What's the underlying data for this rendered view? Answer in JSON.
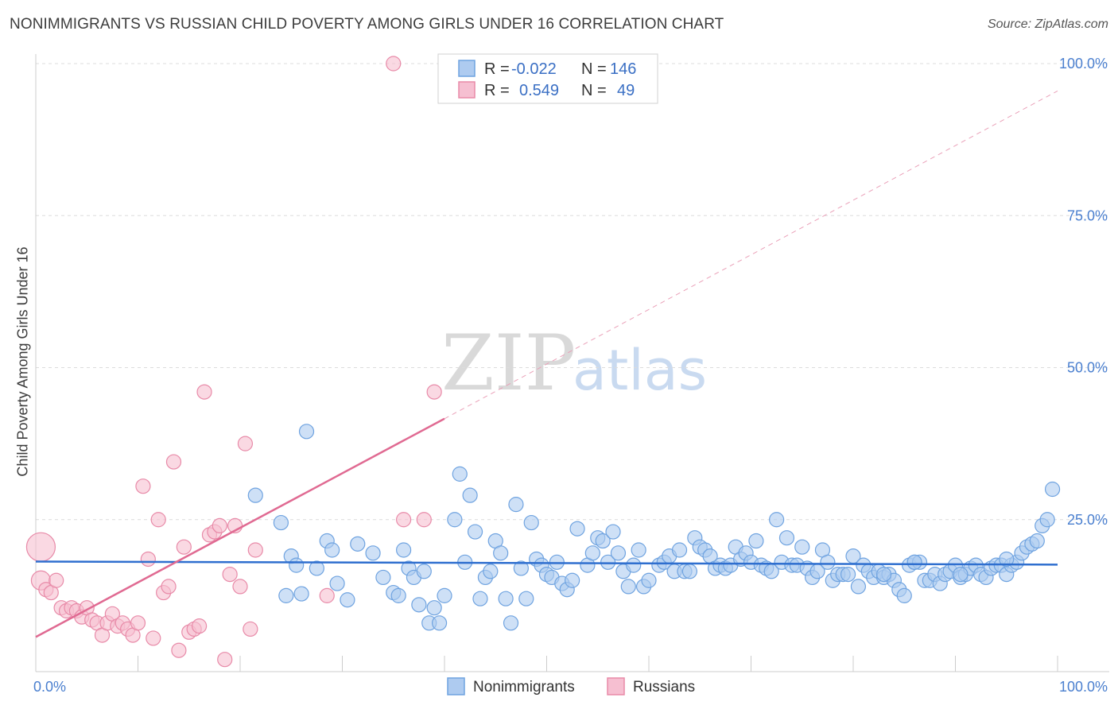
{
  "chart_data": {
    "type": "scatter",
    "title": "NONIMMIGRANTS VS RUSSIAN CHILD POVERTY AMONG GIRLS UNDER 16 CORRELATION CHART",
    "source": "Source: ZipAtlas.com",
    "xlabel": "",
    "ylabel": "Child Poverty Among Girls Under 16",
    "xlim": [
      0,
      100
    ],
    "ylim": [
      0,
      100
    ],
    "x_tick_labels": [
      "0.0%",
      "100.0%"
    ],
    "y_tick_labels": [
      "25.0%",
      "50.0%",
      "75.0%",
      "100.0%"
    ],
    "y_ticks": [
      25,
      50,
      75,
      100
    ],
    "watermark": {
      "part1": "ZIP",
      "part2": "atlas"
    },
    "legend": [
      {
        "r_label": "R =",
        "r_value": "-0.022",
        "n_label": "N =",
        "n_value": "146"
      },
      {
        "r_label": "R =",
        "r_value": "0.549",
        "n_label": "N =",
        "n_value": "49"
      }
    ],
    "series": [
      {
        "name": "Nonimmigrants",
        "color": "#6fa3e0",
        "fill": "#aecbf0",
        "trend": {
          "x": [
            0,
            100
          ],
          "y": [
            18.1,
            17.6
          ]
        },
        "points": [
          [
            21.5,
            29
          ],
          [
            26.5,
            39.5
          ],
          [
            24,
            24.5
          ],
          [
            25,
            19
          ],
          [
            25.5,
            17.5
          ],
          [
            24.5,
            12.5
          ],
          [
            26,
            12.8
          ],
          [
            27.5,
            17
          ],
          [
            28.5,
            21.5
          ],
          [
            29,
            20
          ],
          [
            29.5,
            14.5
          ],
          [
            30.5,
            11.8
          ],
          [
            31.5,
            21
          ],
          [
            33,
            19.5
          ],
          [
            34,
            15.5
          ],
          [
            35,
            13
          ],
          [
            35.5,
            12.5
          ],
          [
            36,
            20
          ],
          [
            36.5,
            17
          ],
          [
            37,
            15.5
          ],
          [
            37.5,
            11
          ],
          [
            38,
            16.5
          ],
          [
            38.5,
            8
          ],
          [
            39,
            10.5
          ],
          [
            39.5,
            8
          ],
          [
            40,
            12.5
          ],
          [
            41,
            25
          ],
          [
            41.5,
            32.5
          ],
          [
            42,
            18
          ],
          [
            42.5,
            29
          ],
          [
            43,
            23
          ],
          [
            43.5,
            12
          ],
          [
            44,
            15.5
          ],
          [
            44.5,
            16.5
          ],
          [
            45,
            21.5
          ],
          [
            45.5,
            19.5
          ],
          [
            46,
            12
          ],
          [
            46.5,
            8
          ],
          [
            47,
            27.5
          ],
          [
            47.5,
            17
          ],
          [
            48,
            12
          ],
          [
            48.5,
            24.5
          ],
          [
            49,
            18.5
          ],
          [
            49.5,
            17.5
          ],
          [
            50,
            16
          ],
          [
            50.5,
            15.5
          ],
          [
            51,
            18
          ],
          [
            51.5,
            14.5
          ],
          [
            52,
            13.5
          ],
          [
            52.5,
            15
          ],
          [
            53,
            23.5
          ],
          [
            54,
            17.5
          ],
          [
            54.5,
            19.5
          ],
          [
            55,
            22
          ],
          [
            55.5,
            21.5
          ],
          [
            56,
            18
          ],
          [
            56.5,
            23
          ],
          [
            57,
            19.5
          ],
          [
            57.5,
            16.5
          ],
          [
            58,
            14
          ],
          [
            58.5,
            17.5
          ],
          [
            59,
            20
          ],
          [
            59.5,
            14
          ],
          [
            60,
            15
          ],
          [
            61,
            17.5
          ],
          [
            61.5,
            18
          ],
          [
            62,
            19
          ],
          [
            62.5,
            16.5
          ],
          [
            63,
            20
          ],
          [
            63.5,
            16.5
          ],
          [
            64,
            16.5
          ],
          [
            64.5,
            22
          ],
          [
            65,
            20.5
          ],
          [
            65.5,
            20
          ],
          [
            66,
            19
          ],
          [
            66.5,
            17
          ],
          [
            67,
            17.5
          ],
          [
            67.5,
            17
          ],
          [
            68,
            17.5
          ],
          [
            68.5,
            20.5
          ],
          [
            69,
            18.5
          ],
          [
            69.5,
            19.5
          ],
          [
            70,
            18
          ],
          [
            70.5,
            21.5
          ],
          [
            71,
            17.5
          ],
          [
            71.5,
            17
          ],
          [
            72,
            16.5
          ],
          [
            72.5,
            25
          ],
          [
            73,
            18
          ],
          [
            73.5,
            22
          ],
          [
            74,
            17.5
          ],
          [
            74.5,
            17.5
          ],
          [
            75,
            20.5
          ],
          [
            75.5,
            17
          ],
          [
            76,
            15.5
          ],
          [
            76.5,
            16.5
          ],
          [
            77,
            20
          ],
          [
            77.5,
            18
          ],
          [
            78,
            15
          ],
          [
            78.5,
            16
          ],
          [
            79,
            16
          ],
          [
            79.5,
            16
          ],
          [
            80,
            19
          ],
          [
            80.5,
            14
          ],
          [
            81,
            17.5
          ],
          [
            81.5,
            16.5
          ],
          [
            82,
            15.5
          ],
          [
            82.5,
            16.5
          ],
          [
            83,
            15.5
          ],
          [
            83.5,
            16
          ],
          [
            84,
            15
          ],
          [
            84.5,
            13.5
          ],
          [
            85,
            12.5
          ],
          [
            85.5,
            17.5
          ],
          [
            86,
            18
          ],
          [
            86.5,
            18
          ],
          [
            87,
            15
          ],
          [
            87.5,
            15
          ],
          [
            88,
            16
          ],
          [
            88.5,
            14.5
          ],
          [
            89,
            16
          ],
          [
            89.5,
            16.5
          ],
          [
            90,
            17.5
          ],
          [
            90.5,
            15.5
          ],
          [
            91,
            16
          ],
          [
            91.5,
            17
          ],
          [
            92,
            17.5
          ],
          [
            92.5,
            16
          ],
          [
            93,
            15.5
          ],
          [
            93.5,
            17
          ],
          [
            94,
            17.5
          ],
          [
            94.5,
            17.5
          ],
          [
            95,
            16
          ],
          [
            95.5,
            17.5
          ],
          [
            96,
            18
          ],
          [
            96.5,
            19.5
          ],
          [
            97,
            20.5
          ],
          [
            97.5,
            21
          ],
          [
            98,
            21.5
          ],
          [
            98.5,
            24
          ],
          [
            99,
            25
          ],
          [
            99.5,
            30
          ],
          [
            83,
            16
          ],
          [
            86,
            18
          ],
          [
            90.5,
            16
          ],
          [
            95,
            18.5
          ]
        ]
      },
      {
        "name": "Russians",
        "color": "#e88aa8",
        "fill": "#f6bfd1",
        "trend": {
          "x": [
            0,
            40
          ],
          "y": [
            5.7,
            41.6
          ]
        },
        "trend_ext": {
          "x": [
            40,
            100
          ],
          "y": [
            41.6,
            95.5
          ]
        },
        "points": [
          [
            0.5,
            20.5
          ],
          [
            0.5,
            15
          ],
          [
            1,
            13.5
          ],
          [
            1.5,
            13
          ],
          [
            2,
            15
          ],
          [
            2.5,
            10.5
          ],
          [
            3,
            10
          ],
          [
            3.5,
            10.5
          ],
          [
            4,
            10
          ],
          [
            4.5,
            9
          ],
          [
            5,
            10.5
          ],
          [
            5.5,
            8.5
          ],
          [
            6,
            8
          ],
          [
            6.5,
            6
          ],
          [
            7,
            8
          ],
          [
            7.5,
            9.5
          ],
          [
            8,
            7.5
          ],
          [
            8.5,
            8
          ],
          [
            9,
            7
          ],
          [
            9.5,
            6
          ],
          [
            10,
            8
          ],
          [
            10.5,
            30.5
          ],
          [
            11,
            18.5
          ],
          [
            11.5,
            5.5
          ],
          [
            12,
            25
          ],
          [
            12.5,
            13
          ],
          [
            13,
            14
          ],
          [
            13.5,
            34.5
          ],
          [
            14,
            3.5
          ],
          [
            14.5,
            20.5
          ],
          [
            15,
            6.5
          ],
          [
            15.5,
            7
          ],
          [
            16,
            7.5
          ],
          [
            16.5,
            46
          ],
          [
            17,
            22.5
          ],
          [
            17.5,
            23
          ],
          [
            18,
            24
          ],
          [
            18.5,
            2
          ],
          [
            19,
            16
          ],
          [
            19.5,
            24
          ],
          [
            20,
            14
          ],
          [
            20.5,
            37.5
          ],
          [
            21,
            7
          ],
          [
            21.5,
            20
          ],
          [
            28.5,
            12.5
          ],
          [
            35,
            100
          ],
          [
            36,
            25
          ],
          [
            38,
            25
          ],
          [
            39,
            46
          ]
        ]
      }
    ]
  }
}
